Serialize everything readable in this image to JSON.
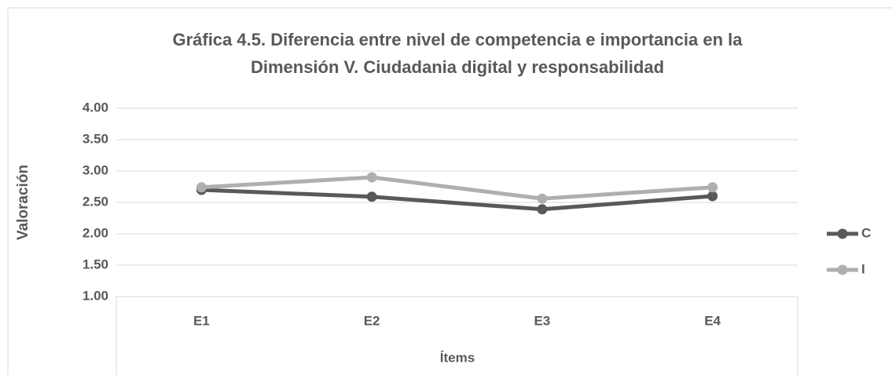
{
  "chart_data": {
    "type": "line",
    "title": [
      "Gráfica 4.5. Diferencia entre nivel de competencia e importancia  en la",
      "Dimensión V. Ciudadania digital y responsabilidad"
    ],
    "x_label": "Ítems",
    "y_label": "Valoración",
    "categories": [
      "E1",
      "E2",
      "E3",
      "E4"
    ],
    "series": [
      {
        "name": "C",
        "color": "#595959",
        "values": [
          2.7,
          2.59,
          2.39,
          2.6
        ]
      },
      {
        "name": "I",
        "color": "#afafaf",
        "values": [
          2.74,
          2.9,
          2.56,
          2.74
        ]
      }
    ],
    "ylim": [
      1,
      4
    ],
    "yticks": [
      {
        "value": 1,
        "label": "1.00"
      },
      {
        "value": 1.5,
        "label": "1.50"
      },
      {
        "value": 2,
        "label": "2.00"
      },
      {
        "value": 2.5,
        "label": "2.50"
      },
      {
        "value": 3,
        "label": "3.00"
      },
      {
        "value": 3.5,
        "label": "3.50"
      },
      {
        "value": 4,
        "label": "4.00"
      }
    ],
    "grid": true,
    "legend": "right"
  }
}
